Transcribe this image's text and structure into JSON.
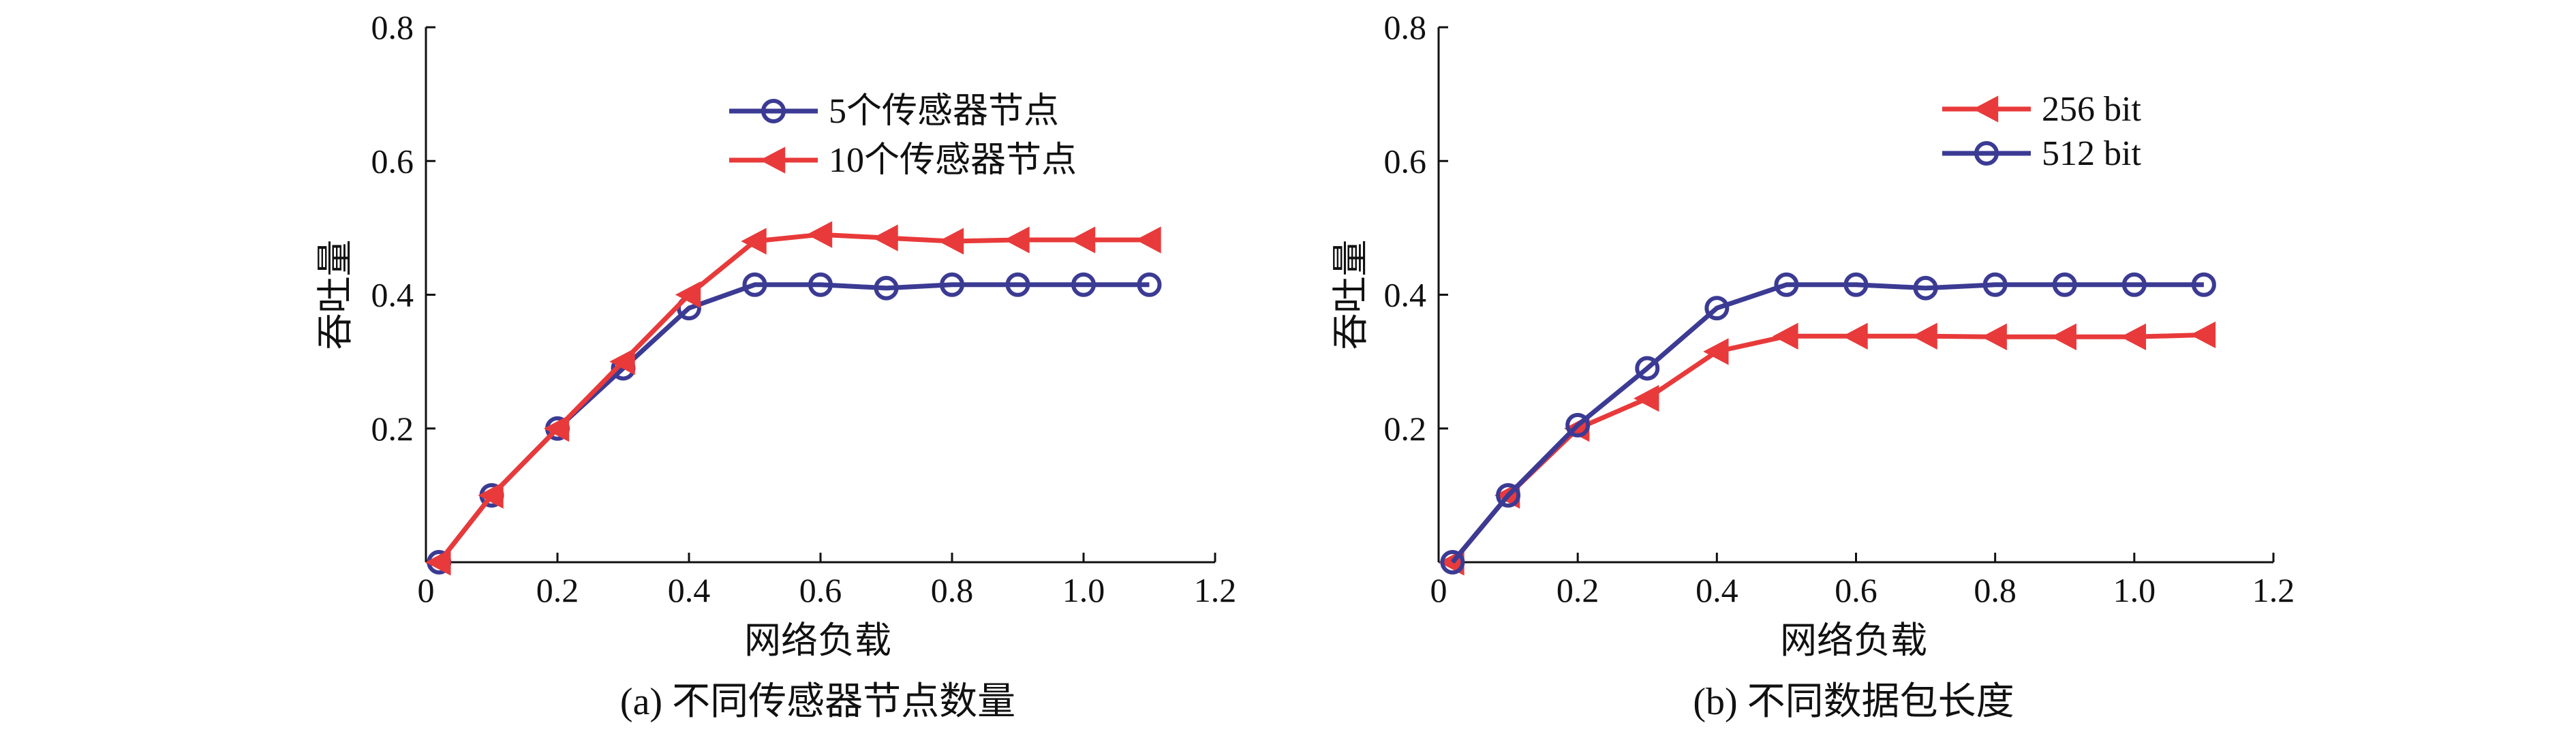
{
  "chart_data": [
    {
      "type": "line",
      "caption": "(a) 不同传感器节点数量",
      "xlabel": "网络负载",
      "ylabel": "吞吐量",
      "xlim": [
        0,
        1.2
      ],
      "ylim": [
        0,
        0.8
      ],
      "xticks": [
        "0",
        "0.2",
        "0.4",
        "0.6",
        "0.8",
        "1.0",
        "1.2"
      ],
      "yticks": [
        "",
        "0.2",
        "0.4",
        "0.6",
        "0.8"
      ],
      "legend_position": "top-right",
      "series": [
        {
          "name": "5个传感器节点",
          "color": "#3b3b94",
          "marker": "circle",
          "x": [
            0.02,
            0.1,
            0.2,
            0.3,
            0.4,
            0.5,
            0.6,
            0.7,
            0.8,
            0.9,
            1.0,
            1.1
          ],
          "y": [
            0.0,
            0.1,
            0.2,
            0.29,
            0.38,
            0.415,
            0.415,
            0.41,
            0.415,
            0.415,
            0.415,
            0.415
          ]
        },
        {
          "name": "10个传感器节点",
          "color": "#e83a3a",
          "marker": "triangle-left",
          "x": [
            0.02,
            0.1,
            0.2,
            0.3,
            0.4,
            0.5,
            0.6,
            0.7,
            0.8,
            0.9,
            1.0,
            1.1
          ],
          "y": [
            0.0,
            0.1,
            0.2,
            0.3,
            0.4,
            0.48,
            0.49,
            0.485,
            0.48,
            0.482,
            0.482,
            0.482
          ]
        }
      ]
    },
    {
      "type": "line",
      "caption": "(b) 不同数据包长度",
      "xlabel": "网络负载",
      "ylabel": "吞吐量",
      "xlim": [
        0,
        1.2
      ],
      "ylim": [
        0,
        0.8
      ],
      "xticks": [
        "0",
        "0.2",
        "0.4",
        "0.6",
        "0.8",
        "1.0",
        "1.2"
      ],
      "yticks": [
        "",
        "0.2",
        "0.4",
        "0.6",
        "0.8"
      ],
      "legend_position": "top-right",
      "series": [
        {
          "name": "256 bit",
          "color": "#e83a3a",
          "marker": "triangle-left",
          "x": [
            0.02,
            0.1,
            0.2,
            0.3,
            0.4,
            0.5,
            0.6,
            0.7,
            0.8,
            0.9,
            1.0,
            1.1
          ],
          "y": [
            0.0,
            0.1,
            0.2,
            0.245,
            0.315,
            0.338,
            0.338,
            0.338,
            0.337,
            0.337,
            0.337,
            0.34
          ]
        },
        {
          "name": "512 bit",
          "color": "#3b3b94",
          "marker": "circle",
          "x": [
            0.02,
            0.1,
            0.2,
            0.3,
            0.4,
            0.5,
            0.6,
            0.7,
            0.8,
            0.9,
            1.0,
            1.1
          ],
          "y": [
            0.0,
            0.1,
            0.205,
            0.29,
            0.38,
            0.415,
            0.415,
            0.41,
            0.415,
            0.415,
            0.415,
            0.415
          ]
        }
      ]
    }
  ]
}
